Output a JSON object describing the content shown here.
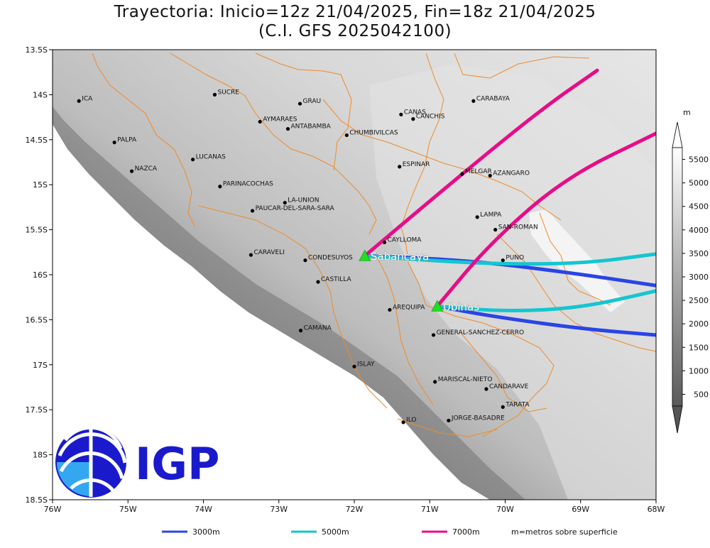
{
  "title": {
    "line1": "Trayectoria: Inicio=12z 21/04/2025, Fin=18z 21/04/2025",
    "line2": "(C.I. GFS 2025042100)"
  },
  "axes": {
    "lon_range": [
      -76,
      -68
    ],
    "lat_range": [
      -18.5,
      -13.5
    ],
    "xticks": [
      {
        "lon": -76,
        "label": "76W"
      },
      {
        "lon": -75,
        "label": "75W"
      },
      {
        "lon": -74,
        "label": "74W"
      },
      {
        "lon": -73,
        "label": "73W"
      },
      {
        "lon": -72,
        "label": "72W"
      },
      {
        "lon": -71,
        "label": "71W"
      },
      {
        "lon": -70,
        "label": "70W"
      },
      {
        "lon": -69,
        "label": "69W"
      },
      {
        "lon": -68,
        "label": "68W"
      }
    ],
    "yticks": [
      {
        "lat": -13.5,
        "label": "13.5S"
      },
      {
        "lat": -14,
        "label": "14S"
      },
      {
        "lat": -14.5,
        "label": "14.5S"
      },
      {
        "lat": -15,
        "label": "15S"
      },
      {
        "lat": -15.5,
        "label": "15.5S"
      },
      {
        "lat": -16,
        "label": "16S"
      },
      {
        "lat": -16.5,
        "label": "16.5S"
      },
      {
        "lat": -17,
        "label": "17S"
      },
      {
        "lat": -17.5,
        "label": "17.5S"
      },
      {
        "lat": -18,
        "label": "18S"
      },
      {
        "lat": -18.5,
        "label": "18.5S"
      }
    ]
  },
  "colorbar": {
    "unit": "m",
    "labels": [
      "500",
      "1000",
      "1500",
      "2000",
      "2500",
      "3000",
      "3500",
      "4000",
      "4500",
      "5000",
      "5500"
    ]
  },
  "places": [
    {
      "name": "ICA",
      "lon": -75.65,
      "lat": -14.07
    },
    {
      "name": "SUCRE",
      "lon": -73.85,
      "lat": -14.0
    },
    {
      "name": "GRAU",
      "lon": -72.72,
      "lat": -14.1
    },
    {
      "name": "AYMARAES",
      "lon": -73.25,
      "lat": -14.3
    },
    {
      "name": "ANTABAMBA",
      "lon": -72.88,
      "lat": -14.38
    },
    {
      "name": "CANAS",
      "lon": -71.38,
      "lat": -14.22
    },
    {
      "name": "CANCHIS",
      "lon": -71.22,
      "lat": -14.27
    },
    {
      "name": "CARABAYA",
      "lon": -70.42,
      "lat": -14.07
    },
    {
      "name": "CHUMBIVILCAS",
      "lon": -72.1,
      "lat": -14.45
    },
    {
      "name": "PALPA",
      "lon": -75.18,
      "lat": -14.53
    },
    {
      "name": "LUCANAS",
      "lon": -74.14,
      "lat": -14.72
    },
    {
      "name": "NAZCA",
      "lon": -74.95,
      "lat": -14.85
    },
    {
      "name": "ESPINAR",
      "lon": -71.4,
      "lat": -14.8
    },
    {
      "name": "MELGAR",
      "lon": -70.57,
      "lat": -14.88
    },
    {
      "name": "AZANGARO",
      "lon": -70.2,
      "lat": -14.9
    },
    {
      "name": "PARINACOCHAS",
      "lon": -73.78,
      "lat": -15.02
    },
    {
      "name": "LA-UNION",
      "lon": -72.92,
      "lat": -15.2
    },
    {
      "name": "PAUCAR-DEL-SARA-SARA",
      "lon": -73.35,
      "lat": -15.29
    },
    {
      "name": "LAMPA",
      "lon": -70.37,
      "lat": -15.36
    },
    {
      "name": "SAN-ROMAN",
      "lon": -70.13,
      "lat": -15.5
    },
    {
      "name": "CAYLLOMA",
      "lon": -71.6,
      "lat": -15.64
    },
    {
      "name": "CARAVELI",
      "lon": -73.37,
      "lat": -15.78
    },
    {
      "name": "CONDESUYOS",
      "lon": -72.65,
      "lat": -15.84
    },
    {
      "name": "PUNO",
      "lon": -70.03,
      "lat": -15.84
    },
    {
      "name": "CASTILLA",
      "lon": -72.48,
      "lat": -16.08
    },
    {
      "name": "AREQUIPA",
      "lon": -71.53,
      "lat": -16.39
    },
    {
      "name": "GENERAL-SANCHEZ-CERRO",
      "lon": -70.95,
      "lat": -16.67
    },
    {
      "name": "CAMANA",
      "lon": -72.71,
      "lat": -16.62
    },
    {
      "name": "ISLAY",
      "lon": -72.0,
      "lat": -17.02
    },
    {
      "name": "MARISCAL-NIETO",
      "lon": -70.93,
      "lat": -17.19
    },
    {
      "name": "CANDARAVE",
      "lon": -70.25,
      "lat": -17.27
    },
    {
      "name": "TARATA",
      "lon": -70.03,
      "lat": -17.47
    },
    {
      "name": "ILO",
      "lon": -71.35,
      "lat": -17.64
    },
    {
      "name": "JORGE-BASADRE",
      "lon": -70.75,
      "lat": -17.62
    }
  ],
  "volcanoes": [
    {
      "name": "Sabancaya",
      "lon": -71.86,
      "lat": -15.79
    },
    {
      "name": "Ubinas",
      "lon": -70.9,
      "lat": -16.35
    }
  ],
  "trajectories": [
    {
      "volcano": "Sabancaya",
      "level": "3000m",
      "color": "#2a44e6",
      "points": [
        [
          -71.86,
          -15.79
        ],
        [
          -70.5,
          -15.84
        ],
        [
          -69.2,
          -15.97
        ],
        [
          -68.0,
          -16.12
        ]
      ]
    },
    {
      "volcano": "Sabancaya",
      "level": "5000m",
      "color": "#14c6d0",
      "points": [
        [
          -71.86,
          -15.79
        ],
        [
          -70.3,
          -15.88
        ],
        [
          -69.0,
          -15.88
        ],
        [
          -68.0,
          -15.77
        ]
      ]
    },
    {
      "volcano": "Sabancaya",
      "level": "7000m",
      "color": "#e80c88",
      "points": [
        [
          -71.86,
          -15.79
        ],
        [
          -70.6,
          -14.9
        ],
        [
          -69.5,
          -14.15
        ],
        [
          -68.78,
          -13.73
        ]
      ]
    },
    {
      "volcano": "Ubinas",
      "level": "3000m",
      "color": "#2a44e6",
      "points": [
        [
          -70.9,
          -16.35
        ],
        [
          -70.2,
          -16.46
        ],
        [
          -69.0,
          -16.6
        ],
        [
          -68.0,
          -16.67
        ]
      ]
    },
    {
      "volcano": "Ubinas",
      "level": "5000m",
      "color": "#14c6d0",
      "points": [
        [
          -70.9,
          -16.35
        ],
        [
          -70.0,
          -16.41
        ],
        [
          -69.0,
          -16.37
        ],
        [
          -68.0,
          -16.18
        ]
      ]
    },
    {
      "volcano": "Ubinas",
      "level": "7000m",
      "color": "#e80c88",
      "points": [
        [
          -70.9,
          -16.35
        ],
        [
          -70.2,
          -15.65
        ],
        [
          -69.2,
          -14.92
        ],
        [
          -68.0,
          -14.43
        ]
      ]
    }
  ],
  "legend": {
    "items": [
      {
        "label": "3000m",
        "color": "#2a44e6"
      },
      {
        "label": "5000m",
        "color": "#14c6d0"
      },
      {
        "label": "7000m",
        "color": "#e80c88"
      }
    ],
    "note": "m=metros sobre superficie"
  },
  "logo": {
    "text": "IGP",
    "color": "#1a1acc"
  },
  "colors": {
    "border": "#f08a2a",
    "marker": "#000000",
    "volcano_marker": "#1fe01f"
  }
}
